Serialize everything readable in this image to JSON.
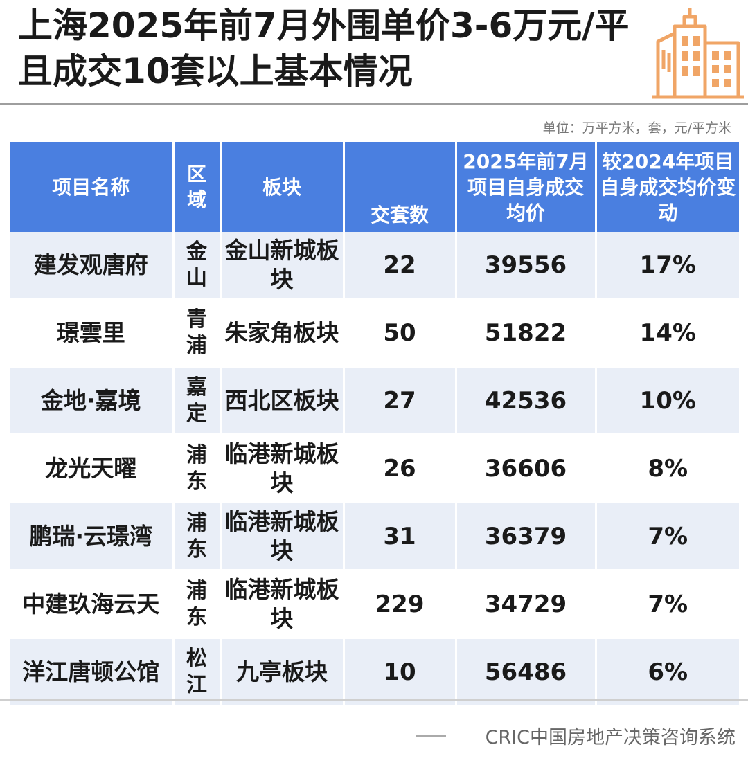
{
  "title": "上海2025年前7月外围单价3-6万元/平且成交10套以上基本情况",
  "unit_note": "单位：万平方米，套，元/平方米",
  "headers": {
    "name": "项目名称",
    "district": "区域",
    "block": "板块",
    "deals": "交套数",
    "avg_price": "2025年前7月项目自身成交均价",
    "change": "较2024年项目自身成交均价变动"
  },
  "rows": [
    {
      "name": "建发观唐府",
      "district": "金山",
      "block": "金山新城板块",
      "deals": "22",
      "avg_price": "39556",
      "change": "17%"
    },
    {
      "name": "璟雲里",
      "district": "青浦",
      "block": "朱家角板块",
      "deals": "50",
      "avg_price": "51822",
      "change": "14%"
    },
    {
      "name": "金地·嘉境",
      "district": "嘉定",
      "block": "西北区板块",
      "deals": "27",
      "avg_price": "42536",
      "change": "10%"
    },
    {
      "name": "龙光天曜",
      "district": "浦东",
      "block": "临港新城板块",
      "deals": "26",
      "avg_price": "36606",
      "change": "8%"
    },
    {
      "name": "鹏瑞·云璟湾",
      "district": "浦东",
      "block": "临港新城板块",
      "deals": "31",
      "avg_price": "36379",
      "change": "7%"
    },
    {
      "name": "中建玖海云天",
      "district": "浦东",
      "block": "临港新城板块",
      "deals": "229",
      "avg_price": "34729",
      "change": "7%"
    },
    {
      "name": "洋江唐顿公馆",
      "district": "松江",
      "block": "九亭板块",
      "deals": "10",
      "avg_price": "56486",
      "change": "6%"
    }
  ],
  "source": "CRIC中国房地产决策咨询系统",
  "icon_color": "#f0a566",
  "header_color": "#4a7fe0",
  "stripe_color": "#e9eef7"
}
